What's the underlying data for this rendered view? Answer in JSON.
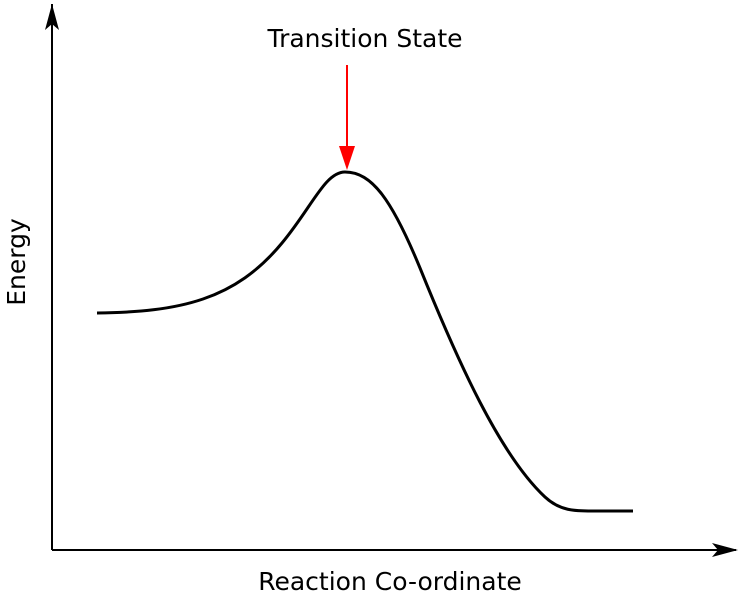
{
  "annotation": "Transition State",
  "x_axis_label": "Reaction Co-ordinate",
  "y_axis_label": "Energy"
}
